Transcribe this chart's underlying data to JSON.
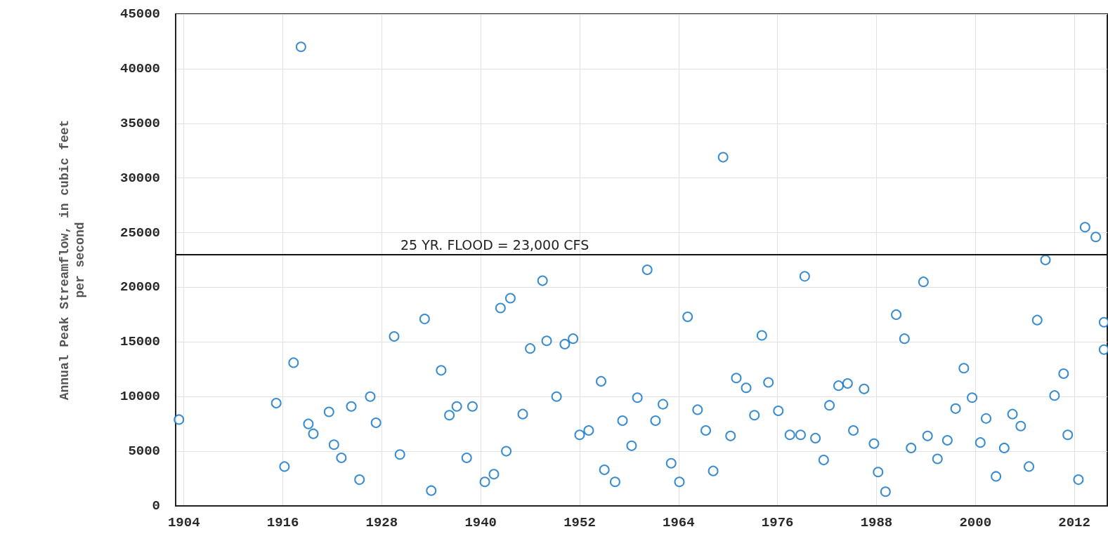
{
  "chart_data": {
    "type": "scatter",
    "ylabel": "Annual Peak Streamflow, in cubic feet per second",
    "xlim": [
      1903,
      2016
    ],
    "xticks": [
      1904,
      1916,
      1928,
      1940,
      1952,
      1964,
      1976,
      1988,
      2000,
      2012
    ],
    "ylim": [
      0,
      45000
    ],
    "yticks": [
      0,
      5000,
      10000,
      15000,
      20000,
      25000,
      30000,
      35000,
      40000,
      45000
    ],
    "grid": true,
    "marker": "circle",
    "ref_lines": [
      {
        "axis": "y",
        "value": 23000,
        "label": "25 YR. FLOOD = 23,000 CFS",
        "color": "#111111"
      }
    ],
    "series": [
      {
        "color": "#0a70c4",
        "x": [
          1903.4,
          1915.2,
          1916.2,
          1917.3,
          1918.2,
          1919.1,
          1919.7,
          1921.6,
          1922.2,
          1923.1,
          1924.3,
          1925.3,
          1926.6,
          1927.3,
          1929.5,
          1930.2,
          1933.2,
          1934.0,
          1935.2,
          1936.2,
          1937.1,
          1938.3,
          1939.0,
          1940.5,
          1941.6,
          1942.4,
          1943.1,
          1943.6,
          1945.1,
          1946.0,
          1947.5,
          1948.0,
          1949.2,
          1950.2,
          1951.2,
          1952.0,
          1953.1,
          1954.6,
          1955.0,
          1956.3,
          1957.2,
          1958.3,
          1959.0,
          1960.2,
          1961.2,
          1962.1,
          1963.1,
          1964.1,
          1965.1,
          1966.3,
          1967.3,
          1968.2,
          1969.4,
          1970.3,
          1971.0,
          1972.2,
          1973.2,
          1974.1,
          1974.9,
          1976.1,
          1977.5,
          1978.8,
          1979.3,
          1980.6,
          1981.6,
          1982.3,
          1983.4,
          1984.5,
          1985.2,
          1986.5,
          1987.7,
          1988.2,
          1989.1,
          1990.4,
          1991.4,
          1992.2,
          1993.7,
          1994.2,
          1995.4,
          1996.6,
          1997.6,
          1998.6,
          1999.6,
          2000.6,
          2001.3,
          2002.5,
          2003.5,
          2004.5,
          2005.5,
          2006.5,
          2007.5,
          2008.5,
          2009.6,
          2010.7,
          2011.2,
          2012.5,
          2013.3,
          2014.6,
          2015.6,
          2015.6
        ],
        "values": [
          7900,
          9400,
          3600,
          13100,
          42000,
          7500,
          6600,
          8600,
          5600,
          4400,
          9100,
          2400,
          10000,
          7600,
          15500,
          4700,
          17100,
          1400,
          12400,
          8300,
          9100,
          4400,
          9100,
          2200,
          2900,
          18100,
          5000,
          19000,
          8400,
          14400,
          20600,
          15100,
          10000,
          14800,
          15300,
          6500,
          6900,
          11400,
          3300,
          2200,
          7800,
          5500,
          9900,
          21600,
          7800,
          9300,
          3900,
          2200,
          17300,
          8800,
          6900,
          3200,
          31900,
          6400,
          11700,
          10800,
          8300,
          15600,
          11300,
          8700,
          6500,
          6500,
          21000,
          6200,
          4200,
          9200,
          11000,
          11200,
          6900,
          10700,
          5700,
          3100,
          1300,
          17500,
          15300,
          5300,
          20500,
          6400,
          4300,
          6000,
          8900,
          12600,
          9900,
          5800,
          8000,
          2700,
          5300,
          8400,
          7300,
          3600,
          17000,
          22500,
          10100,
          12100,
          6500,
          2400,
          25500,
          24600,
          16800,
          14300
        ]
      }
    ]
  }
}
